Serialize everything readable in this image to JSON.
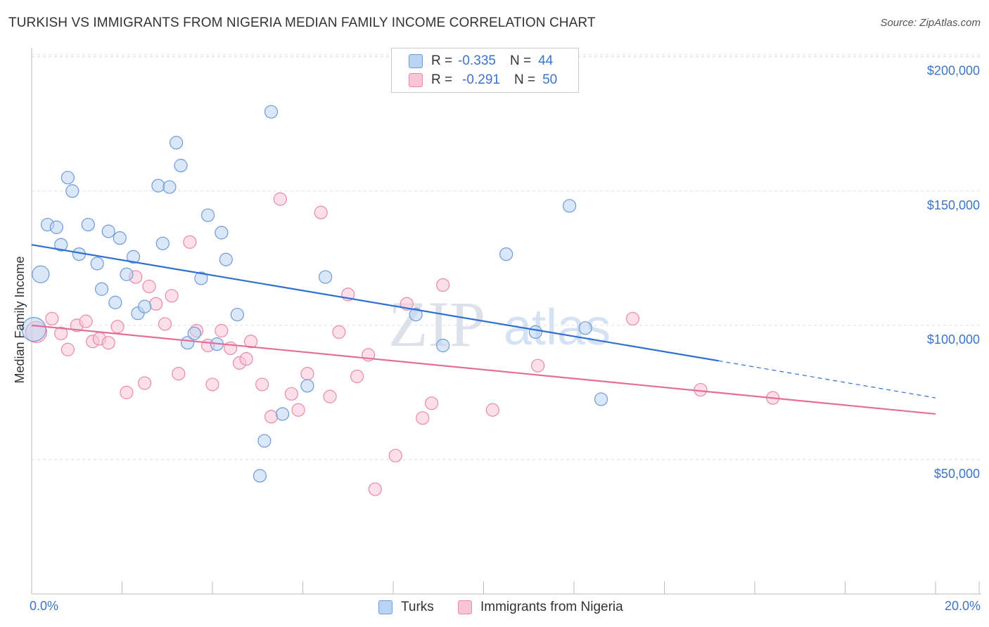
{
  "header": {
    "title": "TURKISH VS IMMIGRANTS FROM NIGERIA MEDIAN FAMILY INCOME CORRELATION CHART",
    "source": "Source: ZipAtlas.com"
  },
  "watermark": {
    "zip": "ZIP",
    "atlas": "atlas"
  },
  "legend": {
    "turks": {
      "r_label": "R =",
      "r_value": "-0.335",
      "n_label": "N =",
      "n_value": "44"
    },
    "nigeria": {
      "r_label": "R =",
      "r_value": "-0.291",
      "n_label": "N =",
      "n_value": "50"
    }
  },
  "bottom_legend": {
    "turks": "Turks",
    "nigeria": "Immigrants from Nigeria"
  },
  "x_axis": {
    "min_label": "0.0%",
    "max_label": "20.0%"
  },
  "colors": {
    "turks_fill": "#b9d3f3",
    "turks_stroke": "#6e9bd6",
    "turks_line": "#2f6fcf",
    "nigeria_fill": "#f9c4d5",
    "nigeria_stroke": "#e98aa9",
    "nigeria_line": "#e46e97",
    "tick_label": "#3d74c6",
    "grid": "#dddddd"
  },
  "chart_data": {
    "type": "scatter",
    "title": "TURKISH VS IMMIGRANTS FROM NIGERIA MEDIAN FAMILY INCOME CORRELATION CHART",
    "xlabel": "",
    "ylabel": "Median Family Income",
    "xlim": [
      0,
      20
    ],
    "ylim": [
      0,
      205000
    ],
    "x_unit": "%",
    "y_ticks": [
      50000,
      100000,
      150000,
      200000
    ],
    "y_tick_labels": [
      "$50,000",
      "$100,000",
      "$150,000",
      "$200,000"
    ],
    "grid": true,
    "legend_position": "top-center",
    "series": [
      {
        "name": "Turks",
        "r": -0.335,
        "n": 44,
        "trend": {
          "x0": 0,
          "y0": 130000,
          "x1": 15.2,
          "y1": 86800,
          "dashed_to_x": 20,
          "dashed_to_y": 73000
        },
        "points": [
          [
            0.05,
            98500
          ],
          [
            0.2,
            119000
          ],
          [
            0.35,
            137500
          ],
          [
            0.55,
            136500
          ],
          [
            0.65,
            130000
          ],
          [
            0.8,
            155000
          ],
          [
            0.9,
            150000
          ],
          [
            1.05,
            126500
          ],
          [
            1.25,
            137500
          ],
          [
            1.45,
            123000
          ],
          [
            1.55,
            113500
          ],
          [
            1.7,
            135000
          ],
          [
            1.85,
            108500
          ],
          [
            1.95,
            132500
          ],
          [
            2.1,
            119000
          ],
          [
            2.25,
            125500
          ],
          [
            2.35,
            104500
          ],
          [
            2.5,
            107000
          ],
          [
            2.8,
            152000
          ],
          [
            2.9,
            130500
          ],
          [
            3.05,
            151500
          ],
          [
            3.2,
            168000
          ],
          [
            3.3,
            159500
          ],
          [
            3.45,
            93500
          ],
          [
            3.6,
            97000
          ],
          [
            3.75,
            117500
          ],
          [
            3.9,
            141000
          ],
          [
            4.1,
            93000
          ],
          [
            4.2,
            134500
          ],
          [
            4.3,
            124500
          ],
          [
            4.55,
            104000
          ],
          [
            5.05,
            44000
          ],
          [
            5.15,
            57000
          ],
          [
            5.3,
            179500
          ],
          [
            5.55,
            67000
          ],
          [
            6.1,
            77500
          ],
          [
            6.5,
            118000
          ],
          [
            8.5,
            104000
          ],
          [
            9.1,
            92500
          ],
          [
            10.5,
            126500
          ],
          [
            11.15,
            97500
          ],
          [
            11.9,
            144500
          ],
          [
            12.25,
            99000
          ],
          [
            12.6,
            72500
          ]
        ]
      },
      {
        "name": "Immigrants from Nigeria",
        "r": -0.291,
        "n": 50,
        "trend": {
          "x0": 0,
          "y0": 100000,
          "x1": 20,
          "y1": 67000
        },
        "points": [
          [
            0.1,
            97500
          ],
          [
            0.45,
            102500
          ],
          [
            0.65,
            97000
          ],
          [
            0.8,
            91000
          ],
          [
            1.0,
            100000
          ],
          [
            1.2,
            101500
          ],
          [
            1.35,
            94000
          ],
          [
            1.5,
            95000
          ],
          [
            1.7,
            93500
          ],
          [
            1.9,
            99500
          ],
          [
            2.1,
            75000
          ],
          [
            2.3,
            118000
          ],
          [
            2.5,
            78500
          ],
          [
            2.6,
            114500
          ],
          [
            2.75,
            108000
          ],
          [
            2.95,
            100500
          ],
          [
            3.1,
            111000
          ],
          [
            3.25,
            82000
          ],
          [
            3.5,
            131000
          ],
          [
            3.65,
            98000
          ],
          [
            3.9,
            92500
          ],
          [
            4.0,
            78000
          ],
          [
            4.2,
            98000
          ],
          [
            4.4,
            91500
          ],
          [
            4.6,
            86000
          ],
          [
            4.75,
            87500
          ],
          [
            4.85,
            94000
          ],
          [
            5.1,
            78000
          ],
          [
            5.3,
            66000
          ],
          [
            5.5,
            147000
          ],
          [
            5.75,
            74500
          ],
          [
            5.9,
            68500
          ],
          [
            6.1,
            82000
          ],
          [
            6.4,
            142000
          ],
          [
            6.6,
            73500
          ],
          [
            6.8,
            97500
          ],
          [
            7.0,
            111500
          ],
          [
            7.2,
            81000
          ],
          [
            7.45,
            89000
          ],
          [
            7.6,
            39000
          ],
          [
            8.05,
            51500
          ],
          [
            8.3,
            108000
          ],
          [
            8.65,
            65500
          ],
          [
            8.85,
            71000
          ],
          [
            9.1,
            115000
          ],
          [
            10.2,
            68500
          ],
          [
            11.2,
            85000
          ],
          [
            13.3,
            102500
          ],
          [
            14.8,
            76000
          ],
          [
            16.4,
            73000
          ]
        ]
      }
    ]
  }
}
